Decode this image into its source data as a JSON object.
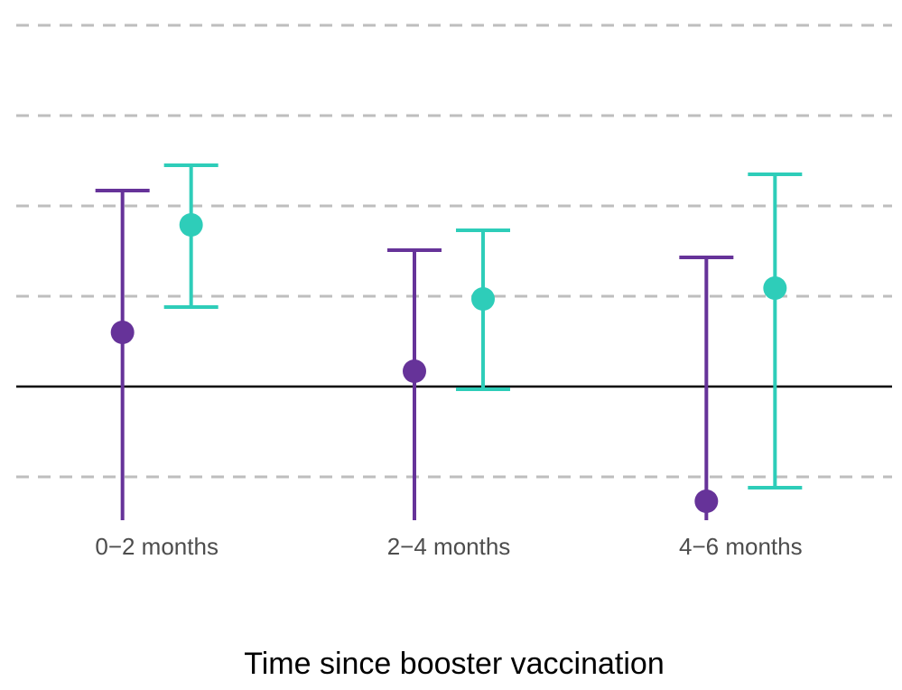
{
  "chart_data": {
    "type": "errorbar",
    "x_label": "Time since booster vaccination",
    "categories": [
      "0−2 months",
      "2−4 months",
      "4−6 months"
    ],
    "series": [
      {
        "color": "#663399",
        "values": [
          0.6,
          0.17,
          -1.27
        ],
        "lower": [
          -2,
          -2,
          -3
        ],
        "upper": [
          2.17,
          1.51,
          1.43
        ]
      },
      {
        "color": "#2ecdb9",
        "values": [
          1.79,
          0.97,
          1.09
        ],
        "lower": [
          0.88,
          -0.03,
          -1.12
        ],
        "upper": [
          2.45,
          1.73,
          2.35
        ]
      }
    ],
    "ylim": [
      -1.47,
      4.18
    ],
    "yticks": [
      -1,
      1,
      2,
      3,
      4
    ],
    "hline": 0,
    "grid": true
  }
}
